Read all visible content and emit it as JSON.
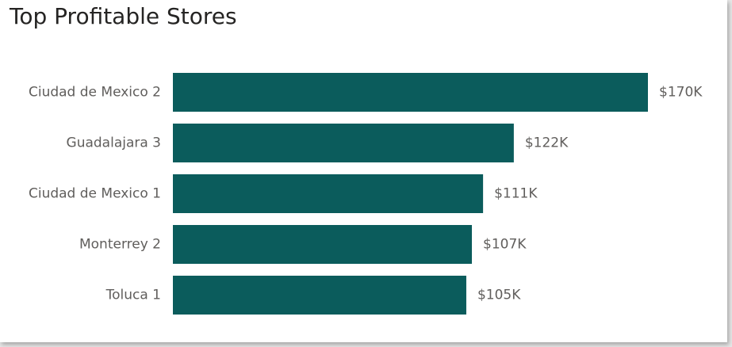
{
  "chart_data": {
    "type": "bar",
    "orientation": "horizontal",
    "title": "Top Profitable Stores",
    "categories": [
      "Ciudad de Mexico 2",
      "Guadalajara 3",
      "Ciudad de Mexico 1",
      "Monterrey 2",
      "Toluca 1"
    ],
    "values": [
      170,
      122,
      111,
      107,
      105
    ],
    "value_labels": [
      "$170K",
      "$122K",
      "$111K",
      "$107K",
      "$105K"
    ],
    "value_unit": "thousand USD",
    "xlim": [
      0,
      170
    ],
    "grid": false,
    "legend": "none",
    "bar_color": "#0b5c5c"
  }
}
